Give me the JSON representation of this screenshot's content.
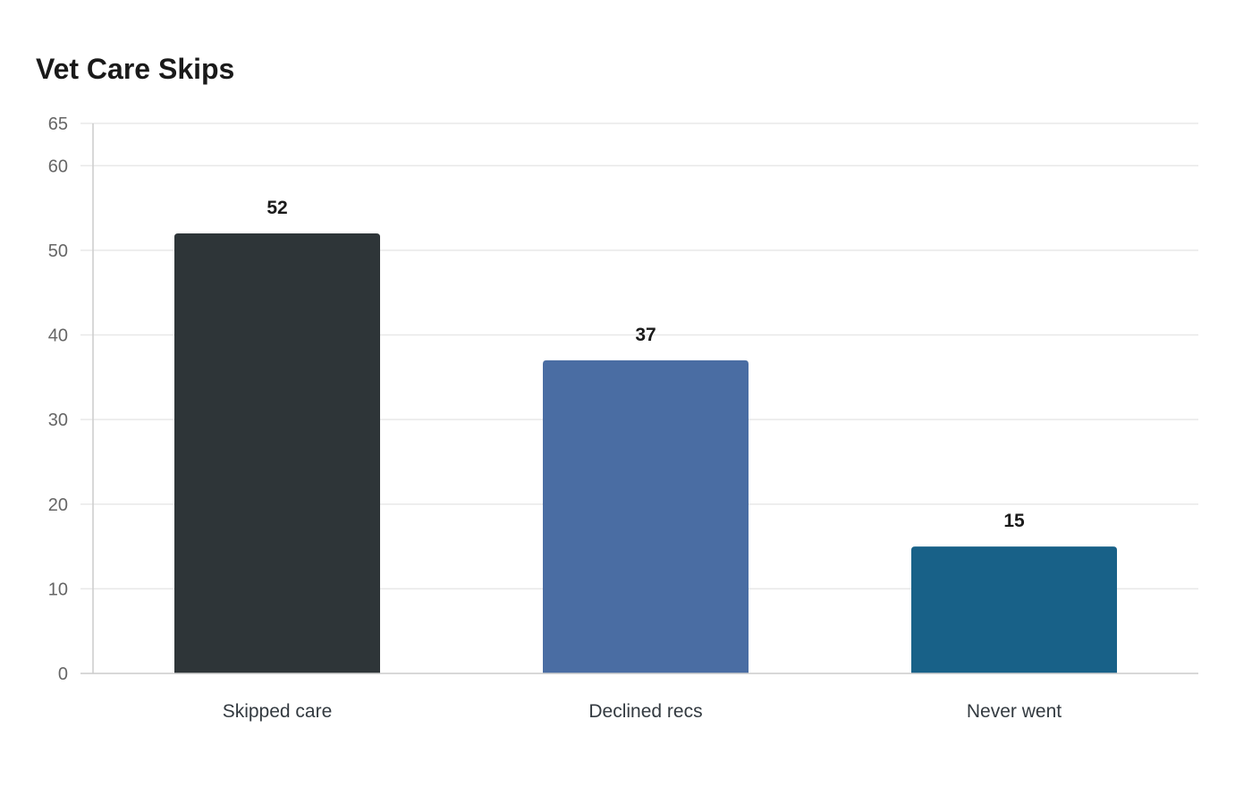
{
  "chart_data": {
    "type": "bar",
    "title": "Vet Care Skips",
    "xlabel": "",
    "ylabel": "",
    "categories": [
      "Skipped care",
      "Declined recs",
      "Never went"
    ],
    "values": [
      52,
      37,
      15
    ],
    "colors": [
      "#2e3538",
      "#4a6da3",
      "#186188"
    ],
    "ylim": [
      0,
      65
    ],
    "yticks": [
      0,
      10,
      20,
      30,
      40,
      50,
      60,
      65
    ],
    "grid": true,
    "legend": "none"
  }
}
